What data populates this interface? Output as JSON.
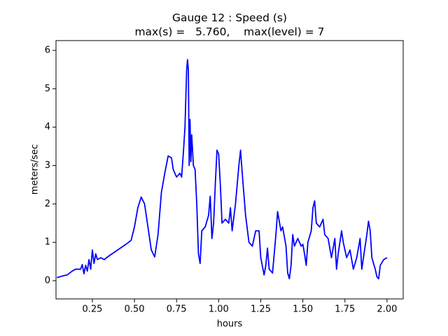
{
  "chart_data": {
    "type": "line",
    "title": "Gauge 12 : Speed (s)",
    "subtitle": "max(s) =   5.760,    max(level) = 7",
    "x_label": "hours",
    "y_label": "meters/sec",
    "color": "#0000ff",
    "xlim": [
      0.034,
      2.096
    ],
    "ylim": [
      -0.474,
      6.255
    ],
    "xticks": [
      0.25,
      {
        "value": 0.5,
        "label": "0.50"
      },
      0.75,
      {
        "value": 1.0,
        "label": "1.00"
      },
      1.25,
      {
        "value": 1.5,
        "label": "1.50"
      },
      1.75,
      {
        "value": 2.0,
        "label": "2.00"
      }
    ],
    "yticks": [
      0,
      1,
      2,
      3,
      4,
      5,
      6
    ],
    "x": [
      0.04,
      0.07,
      0.1,
      0.13,
      0.15,
      0.18,
      0.19,
      0.2,
      0.21,
      0.22,
      0.23,
      0.24,
      0.25,
      0.26,
      0.27,
      0.28,
      0.3,
      0.32,
      0.35,
      0.4,
      0.45,
      0.48,
      0.5,
      0.52,
      0.54,
      0.56,
      0.58,
      0.6,
      0.62,
      0.64,
      0.66,
      0.68,
      0.7,
      0.72,
      0.73,
      0.75,
      0.77,
      0.78,
      0.79,
      0.8,
      0.81,
      0.815,
      0.82,
      0.825,
      0.83,
      0.835,
      0.84,
      0.85,
      0.86,
      0.87,
      0.88,
      0.89,
      0.9,
      0.92,
      0.94,
      0.95,
      0.96,
      0.97,
      0.98,
      0.99,
      1.0,
      1.01,
      1.02,
      1.04,
      1.06,
      1.07,
      1.08,
      1.1,
      1.12,
      1.13,
      1.14,
      1.16,
      1.18,
      1.2,
      1.22,
      1.24,
      1.25,
      1.27,
      1.28,
      1.29,
      1.3,
      1.32,
      1.34,
      1.35,
      1.37,
      1.38,
      1.4,
      1.41,
      1.42,
      1.43,
      1.44,
      1.45,
      1.47,
      1.49,
      1.5,
      1.51,
      1.52,
      1.53,
      1.55,
      1.56,
      1.57,
      1.58,
      1.6,
      1.62,
      1.63,
      1.65,
      1.67,
      1.69,
      1.7,
      1.71,
      1.73,
      1.74,
      1.76,
      1.78,
      1.8,
      1.82,
      1.84,
      1.85,
      1.86,
      1.88,
      1.89,
      1.9,
      1.91,
      1.93,
      1.94,
      1.95,
      1.96,
      1.98,
      2.0
    ],
    "values": [
      0.08,
      0.12,
      0.15,
      0.25,
      0.3,
      0.3,
      0.42,
      0.18,
      0.4,
      0.25,
      0.55,
      0.3,
      0.8,
      0.45,
      0.7,
      0.55,
      0.6,
      0.55,
      0.65,
      0.8,
      0.95,
      1.05,
      1.4,
      1.9,
      2.18,
      2.0,
      1.4,
      0.8,
      0.62,
      1.2,
      2.3,
      2.8,
      3.25,
      3.2,
      2.9,
      2.7,
      2.8,
      2.7,
      3.3,
      4.0,
      5.5,
      5.76,
      5.5,
      3.0,
      4.2,
      3.1,
      3.8,
      3.0,
      2.9,
      2.0,
      0.7,
      0.45,
      1.3,
      1.4,
      1.7,
      2.2,
      1.1,
      1.5,
      2.5,
      3.4,
      3.3,
      2.5,
      1.5,
      1.6,
      1.5,
      1.9,
      1.3,
      2.0,
      3.0,
      3.4,
      2.8,
      1.7,
      1.0,
      0.9,
      1.3,
      1.3,
      0.6,
      0.15,
      0.4,
      0.85,
      0.3,
      0.2,
      1.2,
      1.8,
      1.3,
      1.4,
      0.9,
      0.2,
      0.05,
      0.4,
      1.2,
      0.9,
      1.1,
      0.9,
      0.95,
      0.7,
      0.4,
      1.0,
      1.3,
      1.9,
      2.08,
      1.5,
      1.4,
      1.6,
      1.2,
      1.1,
      0.6,
      1.1,
      0.3,
      0.7,
      1.3,
      1.0,
      0.6,
      0.8,
      0.3,
      0.6,
      1.1,
      0.3,
      0.6,
      1.2,
      1.55,
      1.3,
      0.6,
      0.3,
      0.1,
      0.05,
      0.4,
      0.55,
      0.6
    ]
  }
}
